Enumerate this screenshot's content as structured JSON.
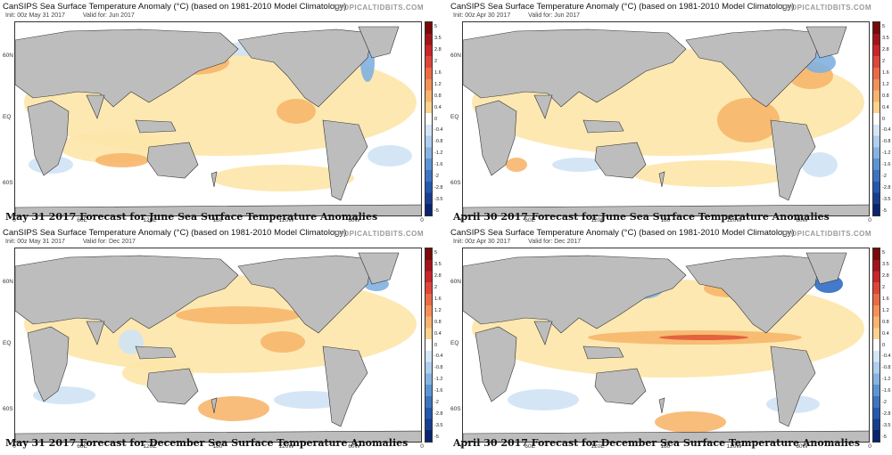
{
  "brand": "TROPICALTIDBITS.COM",
  "colors": {
    "ocean_neutral": "#ffffff",
    "land": "#bdbdbd",
    "warm_light": "#fde6a8",
    "warm_mid": "#f7b66b",
    "warm_strong": "#e0593a",
    "cool_light": "#cfe3f5",
    "cool_mid": "#7fb0e0",
    "cool_strong": "#2f6dc4"
  },
  "lat_labels": [
    "60N",
    "EQ",
    "60S"
  ],
  "lon_labels": [
    "0",
    "60E",
    "120E",
    "180",
    "120W",
    "60W",
    "0"
  ],
  "colorbar_ticks": [
    "5",
    "3.5",
    "2.8",
    "2",
    "1.6",
    "1.2",
    "0.8",
    "0.4",
    "0",
    "-0.4",
    "-0.8",
    "-1.2",
    "-1.6",
    "-2",
    "-2.8",
    "-3.5",
    "-5"
  ],
  "colorbar_colors": [
    "#7a0a0a",
    "#a3141a",
    "#c9252a",
    "#e0453a",
    "#ec6b46",
    "#f49058",
    "#f8b46f",
    "#fbd38e",
    "#ffffff",
    "#d5e6f6",
    "#b0cfee",
    "#86b4e2",
    "#5d95d4",
    "#3c76c2",
    "#2559ae",
    "#173f90",
    "#0b2470"
  ],
  "panels": [
    {
      "title": "CanSIPS Sea Surface Temperature Anomaly (°C) (based on 1981-2010 Model Climatology)",
      "init": "Init: 00z May 31 2017",
      "valid": "Valid for: Jun 2017",
      "caption": "May 31 2017 Forecast for June Sea Surface Temperature Anomalies"
    },
    {
      "title": "CanSIPS Sea Surface Temperature Anomaly (°C) (based on 1981-2010 Model Climatology)",
      "init": "Init: 00z Apr 30 2017",
      "valid": "Valid for: Jun 2017",
      "caption": "April 30 2017 Forecast for June Sea Surface Temperature Anomalies"
    },
    {
      "title": "CanSIPS Sea Surface Temperature Anomaly (°C) (based on 1981-2010 Model Climatology)",
      "init": "Init: 00z May 31 2017",
      "valid": "Valid for: Dec 2017",
      "caption": "May 31 2017 Forecast for December Sea Surface Temperature Anomalies"
    },
    {
      "title": "CanSIPS Sea Surface Temperature Anomaly (°C) (based on 1981-2010 Model Climatology)",
      "init": "Init: 00z Apr 30 2017",
      "valid": "Valid for: Dec 2017",
      "caption": "April 30 2017 Forecast for December Sea Surface Temperature Anomalies"
    }
  ]
}
